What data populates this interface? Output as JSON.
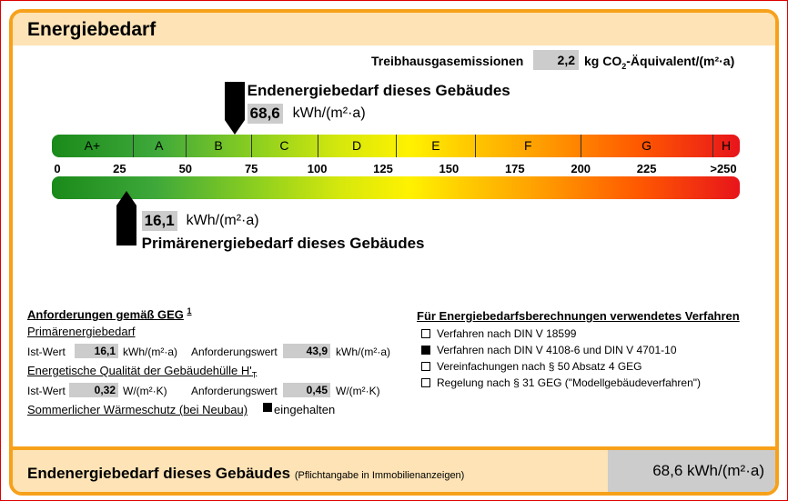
{
  "header": {
    "title": "Energiebedarf"
  },
  "ghg": {
    "label": "Treibhausgasemissionen",
    "value": "2,2",
    "unit_pre": "kg CO",
    "unit_sub": "2",
    "unit_post": "-Äquivalent/(m²·a)"
  },
  "end_energy": {
    "label": "Endenergiebedarf dieses Gebäudes",
    "value": "68,6",
    "unit": "kWh/(m²·a)",
    "level": 68.6
  },
  "primary_energy": {
    "label": "Primärenergiebedarf dieses Gebäudes",
    "value": "16,1",
    "unit": "kWh/(m²·a)",
    "level": 16.1
  },
  "scale": {
    "max": 250,
    "classes": [
      {
        "label": "A+",
        "from": 0,
        "to": 30
      },
      {
        "label": "A",
        "from": 30,
        "to": 50
      },
      {
        "label": "B",
        "from": 50,
        "to": 75
      },
      {
        "label": "C",
        "from": 75,
        "to": 100
      },
      {
        "label": "D",
        "from": 100,
        "to": 130
      },
      {
        "label": "E",
        "from": 130,
        "to": 160
      },
      {
        "label": "F",
        "from": 160,
        "to": 200
      },
      {
        "label": "G",
        "from": 200,
        "to": 250
      },
      {
        "label": "H",
        "from": 250,
        "to": 262
      }
    ],
    "ticks": [
      "0",
      "25",
      "50",
      "75",
      "100",
      "125",
      "150",
      "175",
      "200",
      "225",
      ">250"
    ]
  },
  "requirements": {
    "title": "Anforderungen gemäß GEG",
    "footnote": "1",
    "primary_title": "Primärenergiebedarf",
    "ist_label": "Ist-Wert",
    "ist_value": "16,1",
    "ist_unit": "kWh/(m²·a)",
    "req_label": "Anforderungswert",
    "req_value": "43,9",
    "req_unit": "kWh/(m²·a)",
    "envelope_title": "Energetische Qualität der Gebäudehülle H'",
    "envelope_sub": "T",
    "ist2_label": "Ist-Wert",
    "ist2_value": "0,32",
    "ist2_unit": "W/(m²·K)",
    "req2_label": "Anforderungswert",
    "req2_value": "0,45",
    "req2_unit": "W/(m²·K)",
    "summer_label": "Sommerlicher Wärmeschutz (bei Neubau)",
    "summer_status": "eingehalten",
    "summer_checked": true
  },
  "methods": {
    "title": "Für Energiebedarfsberechnungen verwendetes Verfahren",
    "items": [
      {
        "label": "Verfahren nach DIN V 18599",
        "checked": false
      },
      {
        "label": "Verfahren nach DIN V 4108-6 und DIN V 4701-10",
        "checked": true
      },
      {
        "label": "Vereinfachungen nach § 50 Absatz 4 GEG",
        "checked": false
      },
      {
        "label": "Regelung nach § 31 GEG (\"Modellgebäudeverfahren\")",
        "checked": false
      }
    ]
  },
  "footer": {
    "label": "Endenergiebedarf dieses Gebäudes",
    "note": "(Pflichtangabe in Immobilienanzeigen)",
    "value": "68,6",
    "unit": "kWh/(m²·a)"
  },
  "colors": {
    "accent": "#f7a11a",
    "header_bg": "#fde3b5",
    "value_box": "#cccccc",
    "frame": "#dd0000"
  }
}
